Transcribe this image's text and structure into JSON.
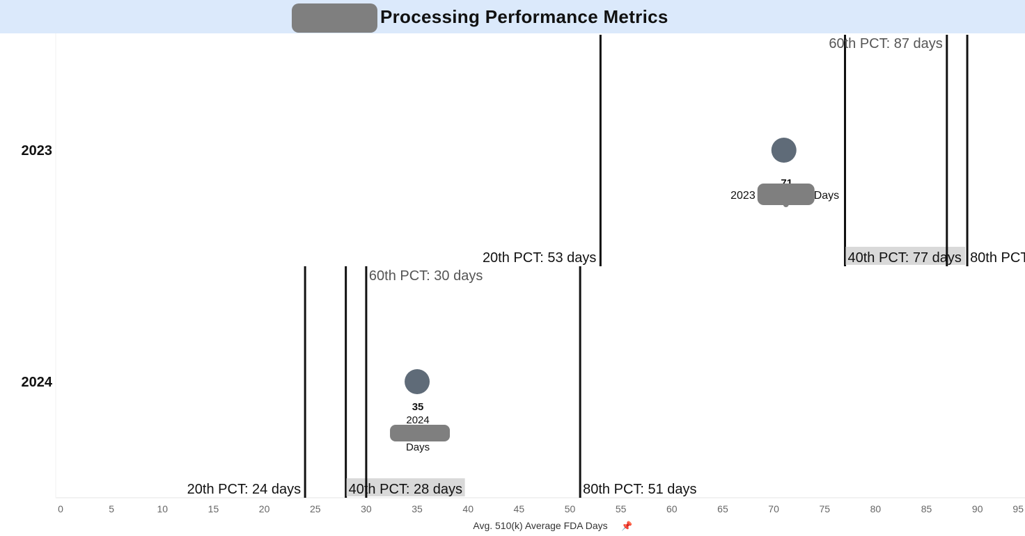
{
  "title": "Processing Performance Metrics",
  "chart_data": {
    "type": "scatter",
    "xlabel": "Avg. 510(k) Average FDA Days",
    "xlim": [
      0,
      95
    ],
    "xticks": [
      0,
      5,
      10,
      15,
      20,
      25,
      30,
      35,
      40,
      45,
      50,
      55,
      60,
      65,
      70,
      75,
      80,
      85,
      90,
      95
    ],
    "rows": [
      {
        "label": "2023",
        "value": 71,
        "value_label": "71",
        "detail_label": "2023",
        "unit_label": "Days",
        "reference_lines": [
          {
            "value": 53,
            "label": "20th PCT: 53 days"
          },
          {
            "value": 77,
            "label": "40th PCT: 77 days"
          },
          {
            "value": 87,
            "label": "60th PCT: 87 days"
          },
          {
            "value": 89,
            "label": "80th PCT"
          }
        ]
      },
      {
        "label": "2024",
        "value": 35,
        "value_label": "35",
        "detail_label": "2024",
        "unit_label": "Days",
        "reference_lines": [
          {
            "value": 24,
            "label": "20th PCT: 24 days"
          },
          {
            "value": 28,
            "label": "40th PCT: 28 days"
          },
          {
            "value": 30,
            "label": "60th PCT: 30 days"
          },
          {
            "value": 51,
            "label": "80th PCT: 51 days"
          }
        ]
      }
    ],
    "colors": {
      "marker": "#5f6b78",
      "line": "#111111",
      "highlight": "#d9d9d9",
      "header": "#dbe9fb",
      "muted_label": "#555555"
    }
  }
}
